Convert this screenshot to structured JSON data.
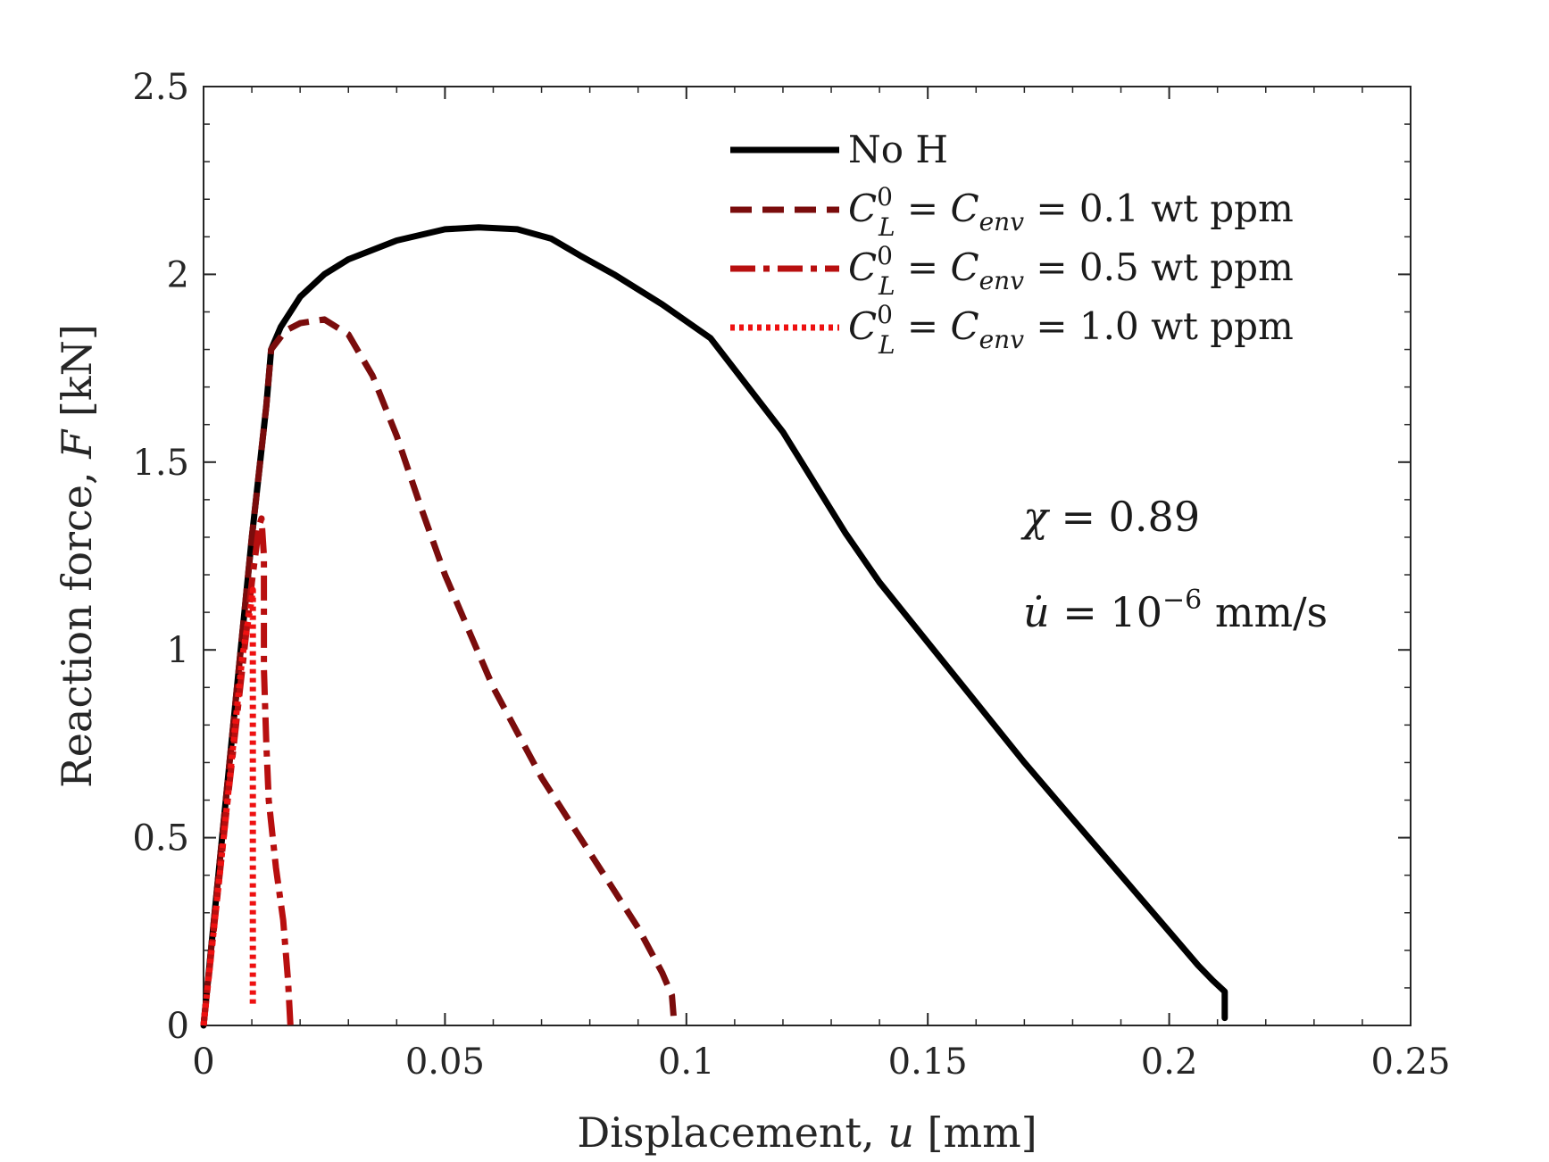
{
  "chart_data": {
    "type": "line",
    "title": "",
    "xlabel": "Displacement, u [mm]",
    "ylabel": "Reaction force, F [kN]",
    "xlim": [
      0,
      0.25
    ],
    "ylim": [
      0,
      2.5
    ],
    "xticks": [
      0,
      0.05,
      0.1,
      0.15,
      0.2,
      0.25
    ],
    "yticks": [
      0,
      0.5,
      1,
      1.5,
      2,
      2.5
    ],
    "xtick_labels": [
      "0",
      "0.05",
      "0.1",
      "0.15",
      "0.2",
      "0.25"
    ],
    "ytick_labels": [
      "0",
      "0.5",
      "1",
      "1.5",
      "2",
      "2.5"
    ],
    "legend_position": "top-right",
    "series": [
      {
        "name": "No H",
        "legend_label": "No H",
        "color": "#000000",
        "dash": "solid",
        "x": [
          0,
          0.005,
          0.01,
          0.013,
          0.014,
          0.016,
          0.02,
          0.025,
          0.03,
          0.04,
          0.05,
          0.057,
          0.065,
          0.072,
          0.078,
          0.085,
          0.095,
          0.105,
          0.12,
          0.133,
          0.14,
          0.15,
          0.16,
          0.17,
          0.18,
          0.19,
          0.2,
          0.206,
          0.209,
          0.2115,
          0.2115
        ],
        "y": [
          0,
          0.65,
          1.3,
          1.65,
          1.8,
          1.86,
          1.94,
          2.0,
          2.04,
          2.09,
          2.12,
          2.125,
          2.12,
          2.095,
          2.05,
          2.0,
          1.92,
          1.83,
          1.58,
          1.31,
          1.18,
          1.02,
          0.86,
          0.7,
          0.55,
          0.4,
          0.25,
          0.16,
          0.12,
          0.09,
          0.02
        ]
      },
      {
        "name": "CL0 = Cenv = 0.1 wt ppm",
        "legend_label": "C_L^0 = C_env = 0.1 wt ppm",
        "color": "#7a0c0c",
        "dash": "dashed",
        "x": [
          0,
          0.005,
          0.01,
          0.013,
          0.014,
          0.017,
          0.02,
          0.025,
          0.03,
          0.035,
          0.04,
          0.045,
          0.05,
          0.055,
          0.06,
          0.065,
          0.07,
          0.075,
          0.08,
          0.085,
          0.09,
          0.095,
          0.097,
          0.0975
        ],
        "y": [
          0,
          0.65,
          1.3,
          1.65,
          1.8,
          1.85,
          1.87,
          1.88,
          1.84,
          1.73,
          1.57,
          1.38,
          1.2,
          1.05,
          0.9,
          0.78,
          0.66,
          0.56,
          0.46,
          0.36,
          0.26,
          0.14,
          0.08,
          0.0
        ]
      },
      {
        "name": "CL0 = Cenv = 0.5 wt ppm",
        "legend_label": "C_L^0 = C_env = 0.5 wt ppm",
        "color": "#b80f0f",
        "dash": "dashdot",
        "x": [
          0,
          0.005,
          0.01,
          0.0115,
          0.012,
          0.0125,
          0.0125,
          0.013,
          0.0135,
          0.015,
          0.0165,
          0.0175,
          0.018
        ],
        "y": [
          0,
          0.6,
          1.18,
          1.33,
          1.35,
          1.25,
          0.95,
          0.75,
          0.6,
          0.42,
          0.28,
          0.12,
          0.0
        ]
      },
      {
        "name": "CL0 = Cenv = 1.0 wt ppm",
        "legend_label": "C_L^0 = C_env = 1.0 wt ppm",
        "color": "#ee1111",
        "dash": "dotted",
        "x": [
          0,
          0.004,
          0.008,
          0.0098,
          0.0102,
          0.0102,
          0.0102
        ],
        "y": [
          0,
          0.48,
          0.98,
          1.12,
          1.16,
          0.5,
          0.05
        ]
      }
    ],
    "annotations": {
      "chi": "χ = 0.89",
      "rate": "u̇ = 10⁻⁶ mm/s"
    }
  },
  "legend": {
    "labels": [
      "No H",
      "C_L^0 = C_env = 0.1 wt ppm",
      "C_L^0 = C_env = 0.5 wt ppm",
      "C_L^0 = C_env = 1.0 wt ppm"
    ]
  }
}
